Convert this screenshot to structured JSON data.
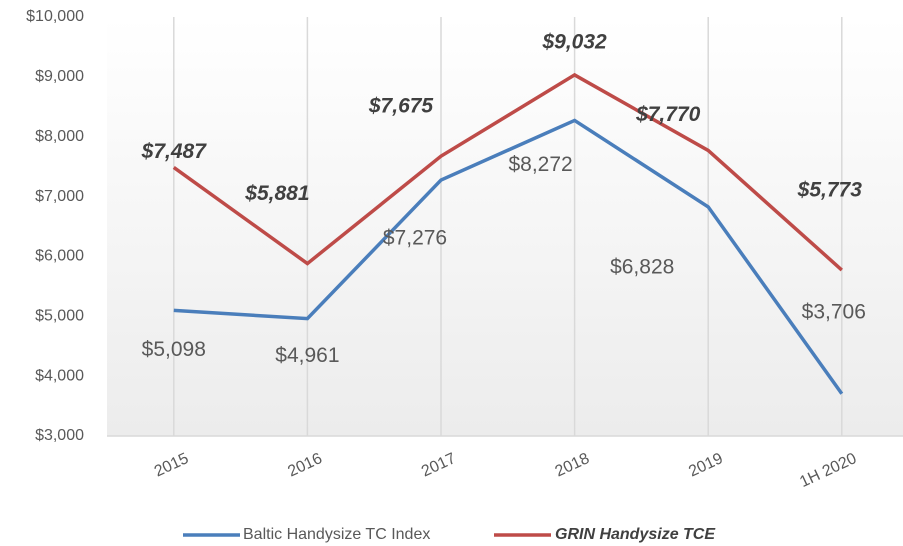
{
  "chart_data": {
    "type": "line",
    "categories": [
      "2015",
      "2016",
      "2017",
      "2018",
      "2019",
      "1H 2020"
    ],
    "series": [
      {
        "name": "Baltic Handysize TC Index",
        "color": "#4a7ebb",
        "values": [
          5098,
          4961,
          7276,
          8272,
          6828,
          3706
        ],
        "value_labels": [
          "$5,098",
          "$4,961",
          "$7,276",
          "$8,272",
          "$6,828",
          "$3,706"
        ]
      },
      {
        "name": "GRIN Handysize TCE",
        "color": "#be4b48",
        "values": [
          7487,
          5881,
          7675,
          9032,
          7770,
          5773
        ],
        "value_labels": [
          "$7,487",
          "$5,881",
          "$7,675",
          "$9,032",
          "$7,770",
          "$5,773"
        ]
      }
    ],
    "ylim": [
      3000,
      10000
    ],
    "yticks": [
      {
        "value": 3000,
        "label": "$3,000"
      },
      {
        "value": 4000,
        "label": "$4,000"
      },
      {
        "value": 5000,
        "label": "$5,000"
      },
      {
        "value": 6000,
        "label": "$6,000"
      },
      {
        "value": 7000,
        "label": "$7,000"
      },
      {
        "value": 8000,
        "label": "$8,000"
      },
      {
        "value": 9000,
        "label": "$9,000"
      },
      {
        "value": 10000,
        "label": "$10,000"
      }
    ],
    "grid": true,
    "legend": "bottom"
  }
}
